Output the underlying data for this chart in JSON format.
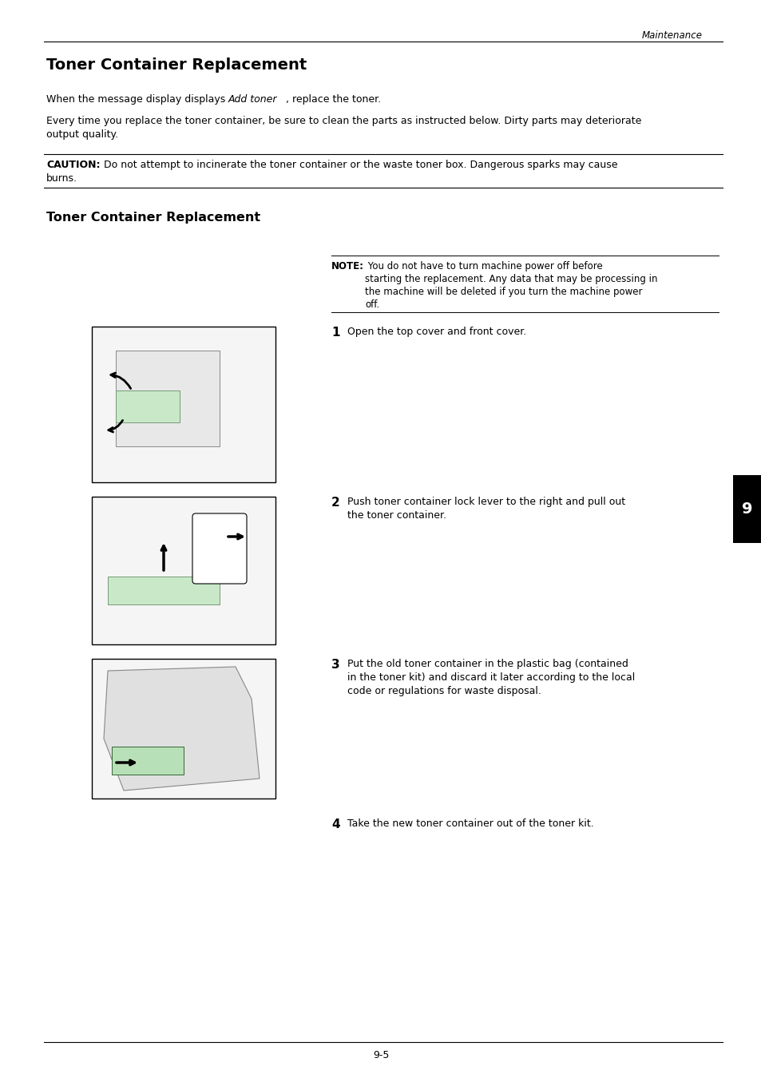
{
  "bg_color": "#ffffff",
  "header_italic": "Maintenance",
  "title": "Toner Container Replacement",
  "subtitle2": "Toner Container Replacement",
  "para1_pre": "When the message display displays ",
  "para1_italic": "Add toner",
  "para1_post": ", replace the toner.",
  "para2_line1": "Every time you replace the toner container, be sure to clean the parts as instructed below. Dirty parts may deteriorate",
  "para2_line2": "output quality.",
  "caution_label": "CAUTION:",
  "caution_line1": " Do not attempt to incinerate the toner container or the waste toner box. Dangerous sparks may cause",
  "caution_line2": "burns.",
  "note_label": "NOTE:",
  "note_line1": " You do not have to turn machine power off before",
  "note_line2": "starting the replacement. Any data that may be processing in",
  "note_line3": "the machine will be deleted if you turn the machine power",
  "note_line4": "off.",
  "step1_num": "1",
  "step1_text": "Open the top cover and front cover.",
  "step2_num": "2",
  "step2_line1": "Push toner container lock lever to the right and pull out",
  "step2_line2": "the toner container.",
  "step3_num": "3",
  "step3_line1": "Put the old toner container in the plastic bag (contained",
  "step3_line2": "in the toner kit) and discard it later according to the local",
  "step3_line3": "code or regulations for waste disposal.",
  "step4_num": "4",
  "step4_text": "Take the new toner container out of the toner kit.",
  "page_num": "9-5",
  "tab_num": "9"
}
